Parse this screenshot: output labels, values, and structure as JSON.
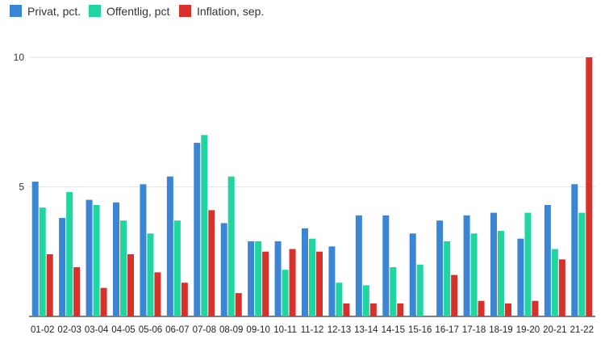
{
  "chart_data": {
    "type": "bar",
    "title": "",
    "xlabel": "",
    "ylabel": "",
    "ylim": [
      0,
      10
    ],
    "yticks": [
      5,
      10
    ],
    "grid": true,
    "legend_position": "top-left",
    "categories": [
      "01-02",
      "02-03",
      "03-04",
      "04-05",
      "05-06",
      "06-07",
      "07-08",
      "08-09",
      "09-10",
      "10-11",
      "11-12",
      "12-13",
      "13-14",
      "14-15",
      "15-16",
      "16-17",
      "17-18",
      "18-19",
      "19-20",
      "20-21",
      "21-22"
    ],
    "series": [
      {
        "name": "Privat, pct.",
        "color": "#3a86d4",
        "values": [
          5.2,
          3.8,
          4.5,
          4.4,
          5.1,
          5.4,
          6.7,
          3.6,
          2.9,
          2.9,
          3.4,
          2.7,
          3.9,
          3.9,
          3.2,
          3.7,
          3.9,
          4.0,
          3.0,
          4.3,
          5.1
        ]
      },
      {
        "name": "Offentlig, pct",
        "color": "#1fd6a0",
        "values": [
          4.2,
          4.8,
          4.3,
          3.7,
          3.2,
          3.7,
          7.0,
          5.4,
          2.9,
          1.8,
          3.0,
          1.3,
          1.2,
          1.9,
          2.0,
          2.9,
          3.2,
          3.3,
          4.0,
          2.6,
          4.0
        ]
      },
      {
        "name": "Inflation, sep.",
        "color": "#d8312c",
        "values": [
          2.4,
          1.9,
          1.1,
          2.4,
          1.7,
          1.3,
          4.1,
          0.9,
          2.5,
          2.6,
          2.5,
          0.5,
          0.5,
          0.5,
          0.0,
          1.6,
          0.6,
          0.5,
          0.6,
          2.2,
          10.0
        ]
      }
    ]
  }
}
